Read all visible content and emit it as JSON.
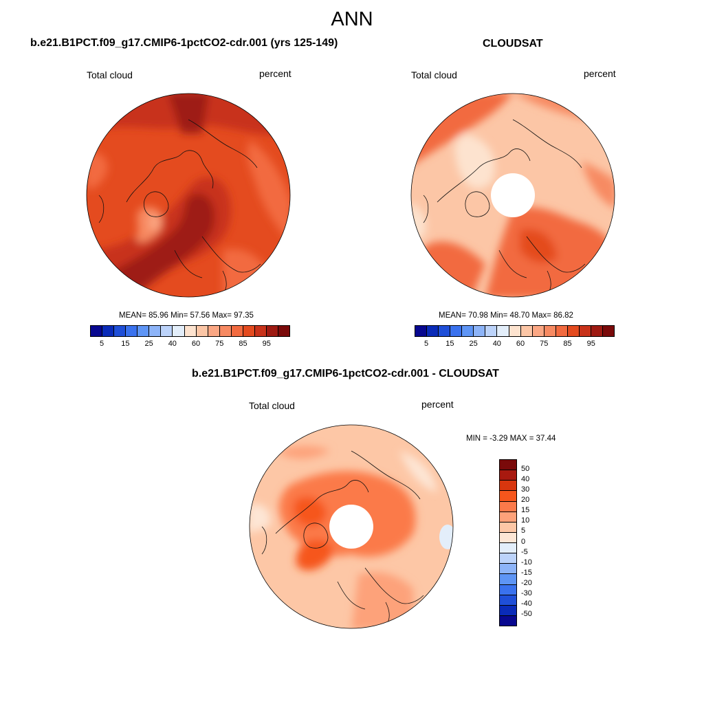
{
  "title": "ANN",
  "panels": {
    "model": {
      "title": "b.e21.B1PCT.f09_g17.CMIP6-1pctCO2-cdr.001 (yrs 125-149)",
      "left_label": "Total cloud",
      "right_label": "percent",
      "stats": "MEAN=  85.96  Min=  57.56  Max=  97.35"
    },
    "obs": {
      "title": "CLOUDSAT",
      "left_label": "Total cloud",
      "right_label": "percent",
      "stats": "MEAN=  70.98  Min=  48.70  Max=  86.82"
    },
    "diff": {
      "title": "b.e21.B1PCT.f09_g17.CMIP6-1pctCO2-cdr.001 - CLOUDSAT",
      "left_label": "Total cloud",
      "right_label": "percent",
      "stats": "MIN =  -3.29 MAX =  37.44"
    }
  },
  "colorbar_abs": {
    "colors": [
      "#08088f",
      "#0a2bb8",
      "#1f4fd8",
      "#3a72ee",
      "#5e95f5",
      "#8db4f8",
      "#bcd3fa",
      "#e3eefa",
      "#fde3cf",
      "#fcc6a6",
      "#fba784",
      "#f78a62",
      "#f26a3f",
      "#e44b1f",
      "#c8321a",
      "#9e1a12",
      "#7a0a0a"
    ],
    "tick_labels": [
      "5",
      "15",
      "25",
      "40",
      "60",
      "75",
      "85",
      "95"
    ]
  },
  "colorbar_diff": {
    "colors": [
      "#7a0a0a",
      "#a8190f",
      "#d8360e",
      "#f6561c",
      "#fb7a4a",
      "#fda27a",
      "#fdc7a6",
      "#fde6d5",
      "#e3eefa",
      "#bcd3fa",
      "#8db4f8",
      "#5e95f5",
      "#3a72ee",
      "#1f4fd8",
      "#0a2bb8",
      "#08088f"
    ],
    "tick_labels": [
      "50",
      "40",
      "30",
      "20",
      "15",
      "10",
      "5",
      "0",
      "-5",
      "-10",
      "-15",
      "-20",
      "-30",
      "-40",
      "-50"
    ]
  }
}
